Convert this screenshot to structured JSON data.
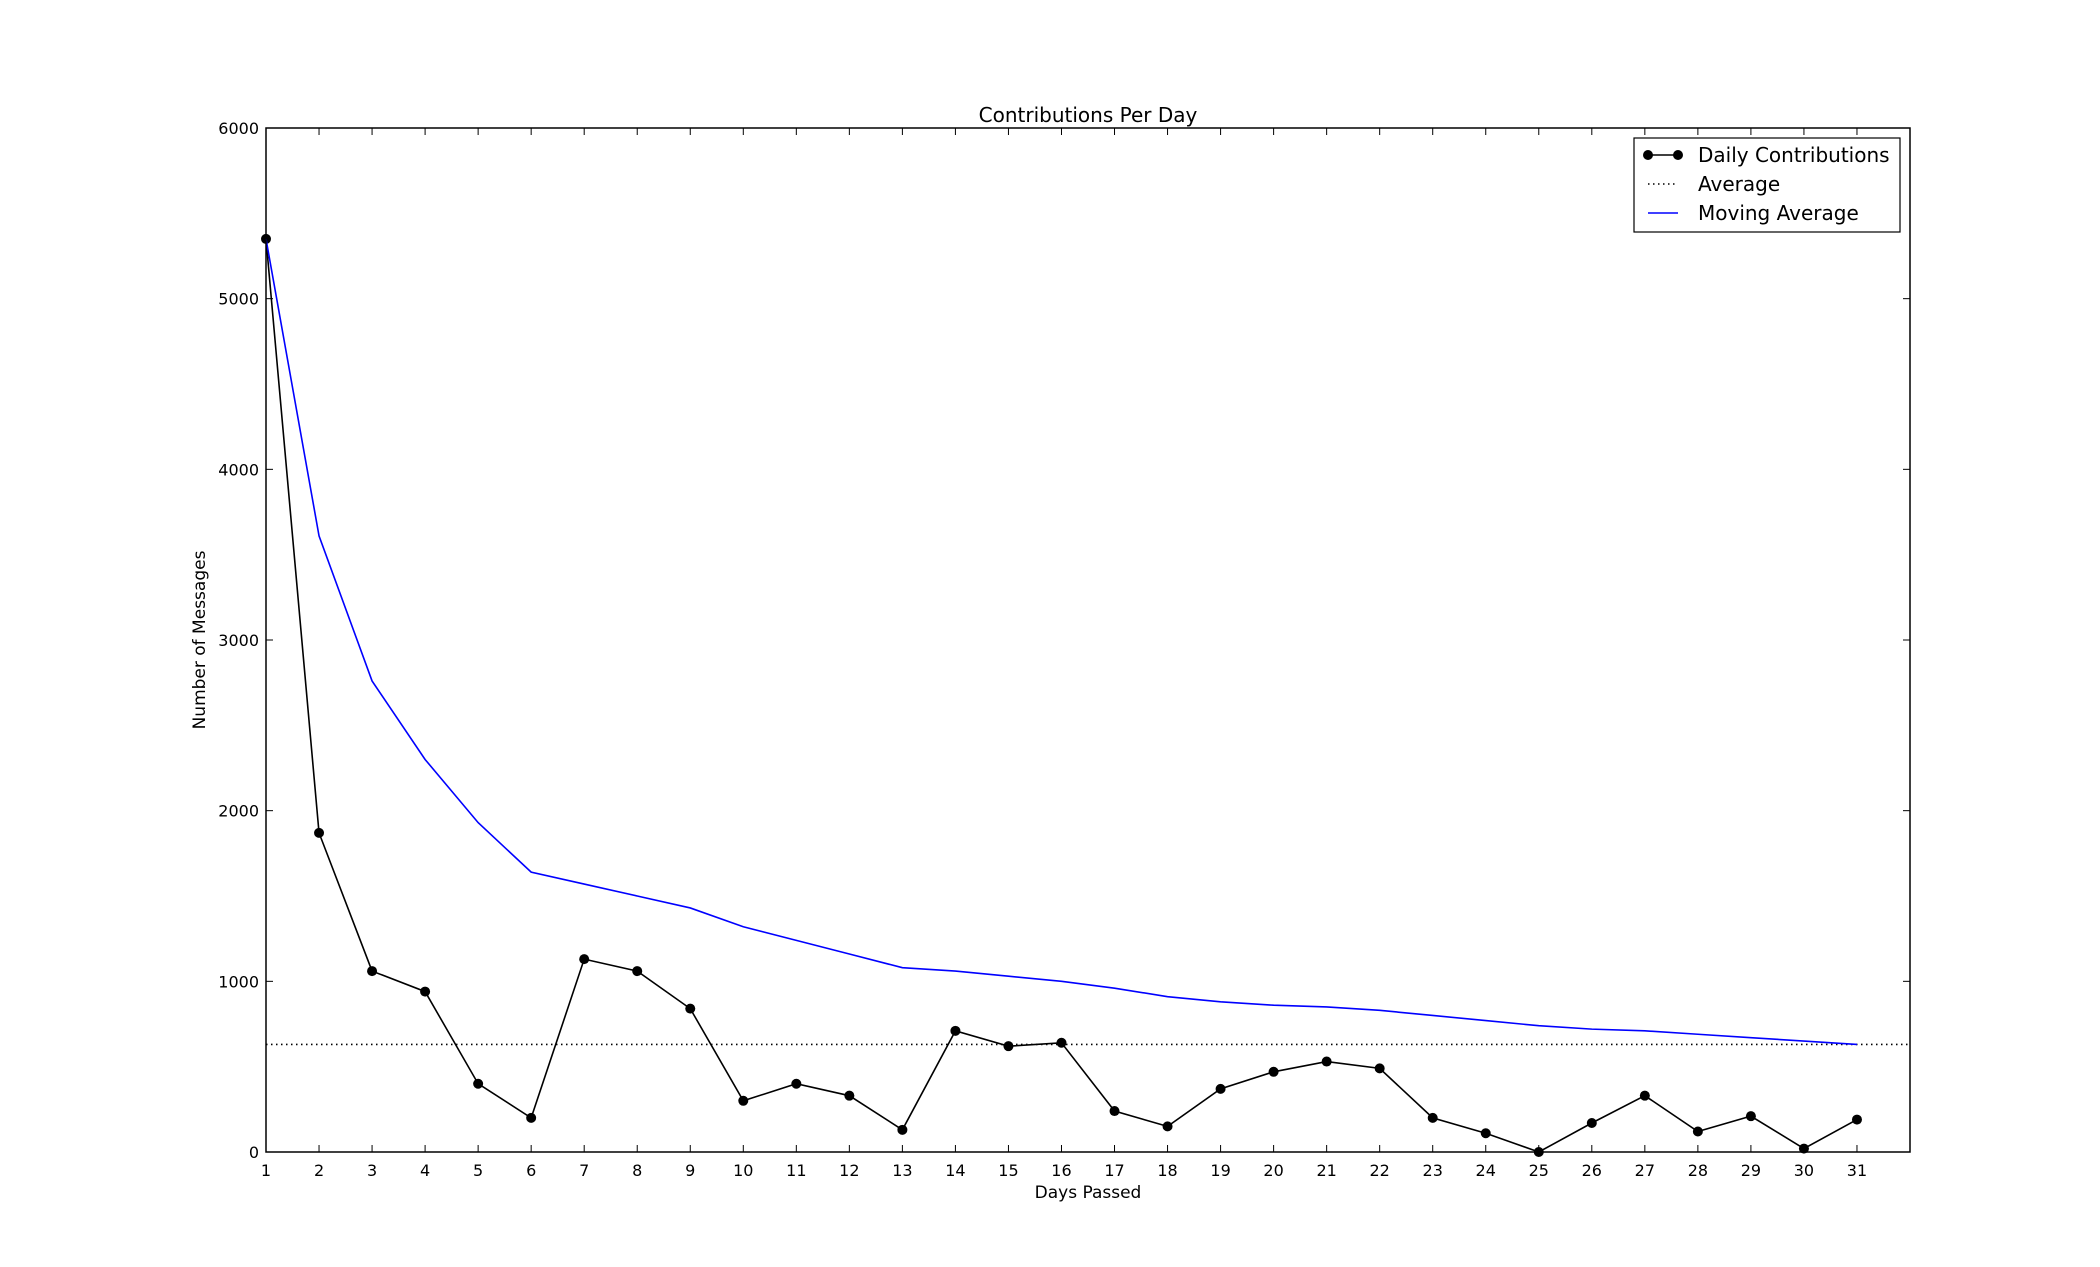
{
  "chart_data": {
    "type": "line",
    "title": "Contributions Per Day",
    "xlabel": "Days Passed",
    "ylabel": "Number of Messages",
    "xlim": [
      1,
      32
    ],
    "ylim": [
      0,
      6000
    ],
    "x_ticks": [
      1,
      2,
      3,
      4,
      5,
      6,
      7,
      8,
      9,
      10,
      11,
      12,
      13,
      14,
      15,
      16,
      17,
      18,
      19,
      20,
      21,
      22,
      23,
      24,
      25,
      26,
      27,
      28,
      29,
      30,
      31
    ],
    "y_ticks": [
      0,
      1000,
      2000,
      3000,
      4000,
      5000,
      6000
    ],
    "grid": false,
    "legend_position": "top-right",
    "series": [
      {
        "name": "Daily Contributions",
        "style": "solid-with-markers",
        "color": "#000000",
        "x": [
          1,
          2,
          3,
          4,
          5,
          6,
          7,
          8,
          9,
          10,
          11,
          12,
          13,
          14,
          15,
          16,
          17,
          18,
          19,
          20,
          21,
          22,
          23,
          24,
          25,
          26,
          27,
          28,
          29,
          30,
          31
        ],
        "values": [
          5350,
          1870,
          1060,
          940,
          400,
          200,
          1130,
          1060,
          840,
          300,
          400,
          330,
          130,
          710,
          620,
          640,
          240,
          150,
          370,
          470,
          530,
          490,
          200,
          110,
          0,
          170,
          330,
          120,
          210,
          20,
          190
        ]
      },
      {
        "name": "Average",
        "style": "dotted",
        "color": "#000000",
        "x": [
          1,
          32
        ],
        "values": [
          630,
          630
        ]
      },
      {
        "name": "Moving Average",
        "style": "solid",
        "color": "#0000ff",
        "x": [
          1,
          2,
          3,
          4,
          5,
          6,
          7,
          8,
          9,
          10,
          11,
          12,
          13,
          14,
          15,
          16,
          17,
          18,
          19,
          20,
          21,
          22,
          23,
          24,
          25,
          26,
          27,
          28,
          29,
          30,
          31
        ],
        "values": [
          5350,
          3610,
          2760,
          2300,
          1930,
          1640,
          1570,
          1500,
          1430,
          1320,
          1240,
          1160,
          1080,
          1060,
          1030,
          1000,
          960,
          910,
          880,
          860,
          850,
          830,
          800,
          770,
          740,
          720,
          710,
          690,
          670,
          650,
          630
        ]
      }
    ]
  }
}
